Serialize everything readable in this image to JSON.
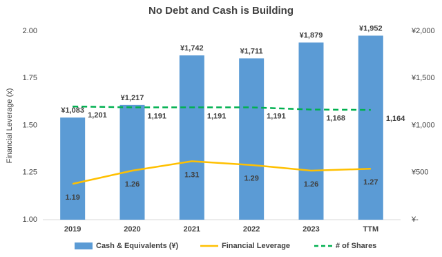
{
  "chart_data": {
    "type": "combo",
    "title": "No Debt and Cash is Building",
    "y_label": "Financial Leverage (x)",
    "categories": [
      "2019",
      "2020",
      "2021",
      "2022",
      "2023",
      "TTM"
    ],
    "ylim": [
      1,
      2
    ],
    "yticks": [
      {
        "value": 1,
        "label": "1.00"
      },
      {
        "value": 1.25,
        "label": "1.25"
      },
      {
        "value": 1.5,
        "label": "1.50"
      },
      {
        "value": 1.75,
        "label": "1.75"
      },
      {
        "value": 2,
        "label": "2.00"
      }
    ],
    "y2lim": [
      0,
      2000
    ],
    "y2ticks": [
      {
        "value": 0,
        "label": "¥-"
      },
      {
        "value": 500,
        "label": "¥500"
      },
      {
        "value": 1000,
        "label": "¥1,000"
      },
      {
        "value": 1500,
        "label": "¥1,500"
      },
      {
        "value": 2000,
        "label": "¥2,000"
      }
    ],
    "series": [
      {
        "name": "Cash & Equivalents (¥)",
        "kind": "bar",
        "axis": "y2",
        "color": "#5b9bd5",
        "values": [
          1083,
          1217,
          1742,
          1711,
          1879,
          1952
        ],
        "value_labels": [
          "¥1,083",
          "¥1,217",
          "¥1,742",
          "¥1,711",
          "¥1,879",
          "¥1,952"
        ]
      },
      {
        "name": "Financial Leverage",
        "kind": "line",
        "axis": "y",
        "color": "#ffc000",
        "values": [
          1.19,
          1.26,
          1.31,
          1.29,
          1.26,
          1.27
        ]
      },
      {
        "name": "# of Shares",
        "kind": "dashed-line",
        "axis": "y2",
        "color": "#00b050",
        "values": [
          1201,
          1191,
          1191,
          1191,
          1168,
          1164
        ],
        "value_labels": [
          "1,201",
          "1,191",
          "1,191",
          "1,191",
          "1,168",
          "1,164"
        ]
      }
    ]
  }
}
